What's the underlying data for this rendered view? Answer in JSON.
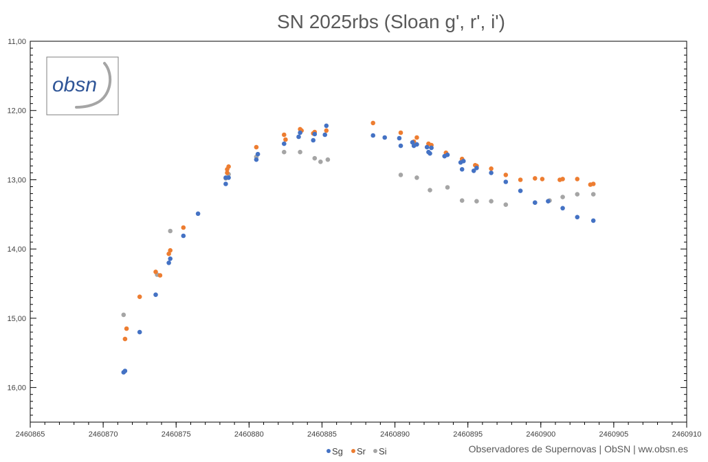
{
  "chart_data": {
    "type": "scatter",
    "title": "SN 2025rbs (Sloan g', r', i')",
    "xlabel": "",
    "ylabel": "",
    "xlim": [
      2460865,
      2460910
    ],
    "ylim": [
      16.5,
      11.0
    ],
    "y_inverted": true,
    "x_ticks": [
      2460865,
      2460870,
      2460875,
      2460880,
      2460885,
      2460890,
      2460895,
      2460900,
      2460905,
      2460910
    ],
    "x_tick_labels": [
      "2460865",
      "2460870",
      "2460875",
      "2460880",
      "2460885",
      "2460890",
      "2460895",
      "2460900",
      "2460905",
      "2460910"
    ],
    "y_ticks": [
      11,
      12,
      13,
      14,
      15,
      16
    ],
    "y_tick_labels": [
      "11,00",
      "12,00",
      "13,00",
      "14,00",
      "15,00",
      "16,00"
    ],
    "grid": false,
    "legend_position": "bottom",
    "series": [
      {
        "name": "Sg",
        "color": "#4472c4",
        "points": [
          [
            2460871.4,
            15.78
          ],
          [
            2460871.5,
            15.76
          ],
          [
            2460872.5,
            15.2
          ],
          [
            2460873.6,
            14.66
          ],
          [
            2460874.5,
            14.2
          ],
          [
            2460874.6,
            14.14
          ],
          [
            2460875.5,
            13.81
          ],
          [
            2460876.5,
            13.49
          ],
          [
            2460878.4,
            12.97
          ],
          [
            2460878.4,
            13.06
          ],
          [
            2460878.6,
            12.97
          ],
          [
            2460880.5,
            12.71
          ],
          [
            2460880.6,
            12.63
          ],
          [
            2460882.4,
            12.48
          ],
          [
            2460883.4,
            12.38
          ],
          [
            2460883.5,
            12.32
          ],
          [
            2460884.4,
            12.43
          ],
          [
            2460884.5,
            12.34
          ],
          [
            2460885.2,
            12.35
          ],
          [
            2460885.3,
            12.22
          ],
          [
            2460888.5,
            12.36
          ],
          [
            2460889.3,
            12.39
          ],
          [
            2460890.3,
            12.4
          ],
          [
            2460890.4,
            12.51
          ],
          [
            2460891.2,
            12.46
          ],
          [
            2460891.3,
            12.51
          ],
          [
            2460891.5,
            12.49
          ],
          [
            2460892.2,
            12.53
          ],
          [
            2460892.3,
            12.6
          ],
          [
            2460892.4,
            12.62
          ],
          [
            2460892.5,
            12.54
          ],
          [
            2460893.4,
            12.66
          ],
          [
            2460893.6,
            12.64
          ],
          [
            2460894.5,
            12.75
          ],
          [
            2460894.6,
            12.85
          ],
          [
            2460894.7,
            12.73
          ],
          [
            2460895.4,
            12.87
          ],
          [
            2460895.6,
            12.83
          ],
          [
            2460896.6,
            12.9
          ],
          [
            2460897.6,
            13.03
          ],
          [
            2460898.6,
            13.16
          ],
          [
            2460899.6,
            13.33
          ],
          [
            2460900.5,
            13.31
          ],
          [
            2460901.5,
            13.41
          ],
          [
            2460902.5,
            13.54
          ],
          [
            2460903.6,
            13.59
          ]
        ]
      },
      {
        "name": "Sr",
        "color": "#ed7d31",
        "points": [
          [
            2460871.5,
            15.3
          ],
          [
            2460871.6,
            15.15
          ],
          [
            2460872.5,
            14.69
          ],
          [
            2460873.6,
            14.33
          ],
          [
            2460873.9,
            14.38
          ],
          [
            2460874.5,
            14.07
          ],
          [
            2460874.6,
            14.02
          ],
          [
            2460875.5,
            13.69
          ],
          [
            2460878.5,
            12.9
          ],
          [
            2460878.5,
            12.85
          ],
          [
            2460878.6,
            12.81
          ],
          [
            2460880.5,
            12.53
          ],
          [
            2460882.4,
            12.35
          ],
          [
            2460882.5,
            12.42
          ],
          [
            2460883.5,
            12.27
          ],
          [
            2460883.6,
            12.29
          ],
          [
            2460884.4,
            12.33
          ],
          [
            2460884.5,
            12.31
          ],
          [
            2460885.3,
            12.29
          ],
          [
            2460888.5,
            12.18
          ],
          [
            2460890.4,
            12.32
          ],
          [
            2460891.3,
            12.45
          ],
          [
            2460891.5,
            12.39
          ],
          [
            2460892.3,
            12.48
          ],
          [
            2460892.5,
            12.5
          ],
          [
            2460893.5,
            12.61
          ],
          [
            2460894.6,
            12.7
          ],
          [
            2460895.5,
            12.79
          ],
          [
            2460895.6,
            12.8
          ],
          [
            2460896.6,
            12.84
          ],
          [
            2460897.6,
            12.93
          ],
          [
            2460898.6,
            13.0
          ],
          [
            2460899.6,
            12.98
          ],
          [
            2460900.1,
            12.99
          ],
          [
            2460901.3,
            13.0
          ],
          [
            2460901.5,
            12.99
          ],
          [
            2460902.5,
            12.99
          ],
          [
            2460903.4,
            13.07
          ],
          [
            2460903.6,
            13.06
          ]
        ]
      },
      {
        "name": "Si",
        "color": "#a5a5a5",
        "points": [
          [
            2460871.4,
            14.95
          ],
          [
            2460873.7,
            14.37
          ],
          [
            2460874.6,
            13.74
          ],
          [
            2460878.4,
            12.98
          ],
          [
            2460878.6,
            12.92
          ],
          [
            2460880.5,
            12.67
          ],
          [
            2460882.4,
            12.6
          ],
          [
            2460883.5,
            12.6
          ],
          [
            2460884.5,
            12.69
          ],
          [
            2460884.9,
            12.74
          ],
          [
            2460885.4,
            12.71
          ],
          [
            2460890.4,
            12.93
          ],
          [
            2460891.5,
            12.97
          ],
          [
            2460892.4,
            13.15
          ],
          [
            2460893.6,
            13.11
          ],
          [
            2460894.6,
            13.3
          ],
          [
            2460895.6,
            13.31
          ],
          [
            2460896.6,
            13.31
          ],
          [
            2460897.6,
            13.36
          ],
          [
            2460899.6,
            13.33
          ],
          [
            2460900.6,
            13.3
          ],
          [
            2460901.5,
            13.25
          ],
          [
            2460902.5,
            13.21
          ],
          [
            2460903.6,
            13.21
          ]
        ]
      }
    ]
  },
  "logo": {
    "text": "obsn"
  },
  "credit": "Observadores de Supernovas | ObSN | ww.obsn.es"
}
